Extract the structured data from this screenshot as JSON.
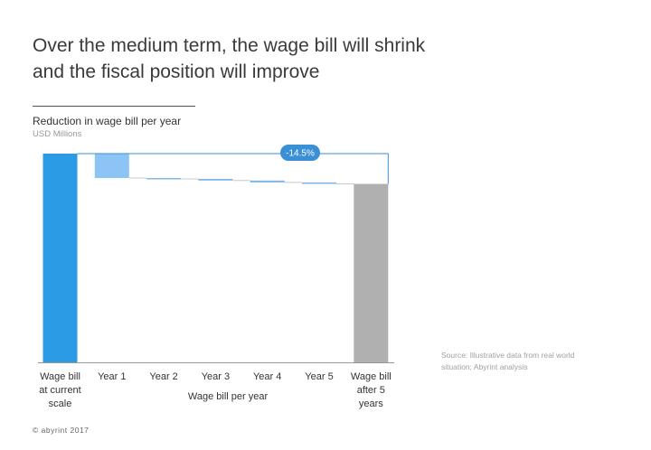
{
  "title_line1": "Over the medium term, the wage bill will shrink",
  "title_line2": "and the fiscal position will improve",
  "subtitle": "Reduction in wage bill per year",
  "unit_label": "USD Millions",
  "source_note": "Source: Illustrative data from real world situation; Abyrint analysis",
  "footer": "© abyrint 2017",
  "colors": {
    "total_start": "#2b9be6",
    "year1": "#8cc5f5",
    "decrease": "#7fb8e8",
    "total_end": "#b0b0b0",
    "connector": "#3a8fd6",
    "badge": "#3a8fd6",
    "axis": "#999999"
  },
  "chart_data": {
    "type": "waterfall",
    "title": "Over the medium term, the wage bill will shrink and the fiscal position will improve",
    "subtitle": "Reduction in wage bill per year",
    "unit": "USD Millions",
    "xlabel": "Wage bill per year",
    "ylabel": "",
    "ylim": [
      0,
      100
    ],
    "categories": [
      "Wage bill at current scale",
      "Year 1",
      "Year 2",
      "Year 3",
      "Year 4",
      "Year 5",
      "Wage bill after 5 years"
    ],
    "category_lines": [
      [
        "Wage bill",
        "at current",
        "scale"
      ],
      [
        "Year 1"
      ],
      [
        "Year 2"
      ],
      [
        "Year 3"
      ],
      [
        "Year 4"
      ],
      [
        "Year 5"
      ],
      [
        "Wage bill",
        "after 5",
        "years"
      ]
    ],
    "bars": [
      {
        "kind": "total",
        "start": 0,
        "end": 100
      },
      {
        "kind": "decrease",
        "start": 100,
        "end": 88.3
      },
      {
        "kind": "decrease",
        "start": 88.3,
        "end": 87.9
      },
      {
        "kind": "decrease",
        "start": 87.9,
        "end": 87.1
      },
      {
        "kind": "decrease",
        "start": 87.1,
        "end": 86.2
      },
      {
        "kind": "decrease",
        "start": 86.2,
        "end": 85.5
      },
      {
        "kind": "total",
        "start": 0,
        "end": 85.5
      }
    ],
    "change_annotation": "-14.5%",
    "grid": false,
    "legend": "none"
  }
}
